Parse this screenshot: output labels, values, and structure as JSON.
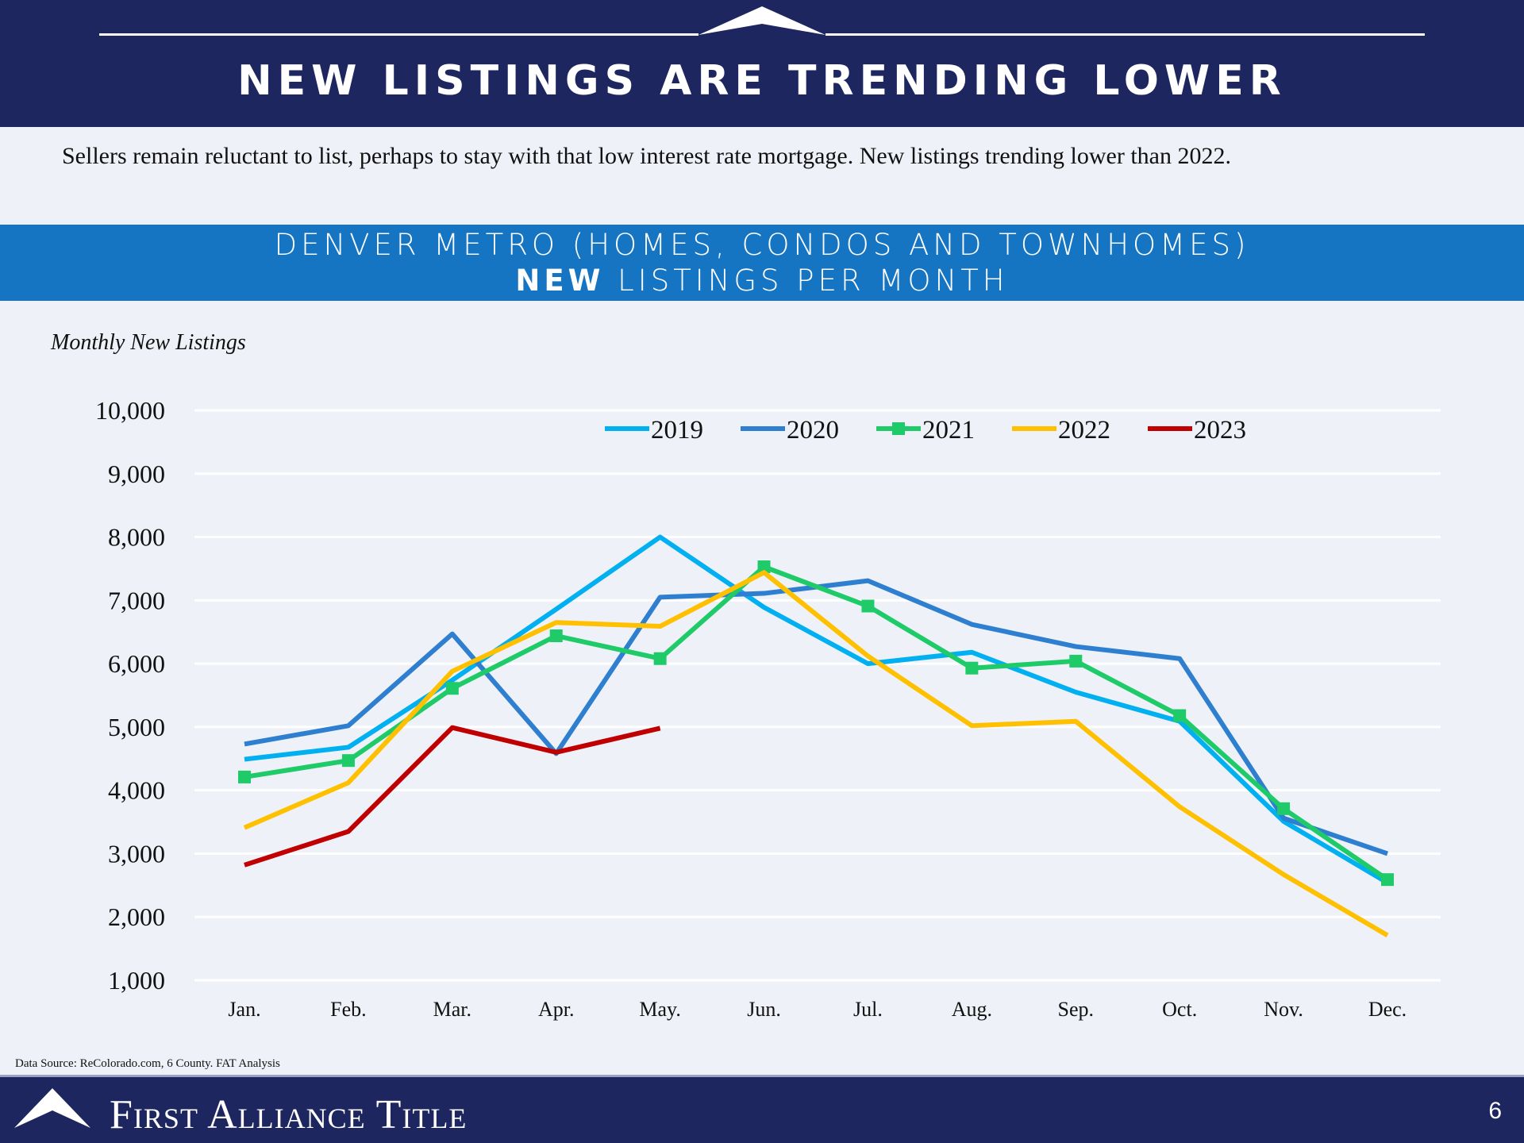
{
  "header": {
    "title": "NEW LISTINGS ARE TRENDING LOWER"
  },
  "subtitle": "Sellers remain reluctant to list, perhaps to stay with that low interest rate mortgage.  New listings trending lower than 2022.",
  "band": {
    "line1": "DENVER METRO (HOMES, CONDOS AND TOWNHOMES)",
    "line2_bold": "NEW",
    "line2_rest": " LISTINGS PER MONTH"
  },
  "footer": {
    "source": "Data Source: ReColorado.com, 6 County.  FAT Analysis",
    "company": "First Alliance Title",
    "page": "6"
  },
  "chart_data": {
    "type": "line",
    "title": "DENVER METRO (HOMES, CONDOS AND TOWNHOMES) NEW LISTINGS PER MONTH",
    "ylabel": "Monthly New Listings",
    "xlabel": "",
    "ylim": [
      1000,
      10000
    ],
    "yticks": [
      "1,000",
      "2,000",
      "3,000",
      "4,000",
      "5,000",
      "6,000",
      "7,000",
      "8,000",
      "9,000",
      "10,000"
    ],
    "grid": true,
    "legend": "top-center",
    "categories": [
      "Jan.",
      "Feb.",
      "Mar.",
      "Apr.",
      "May.",
      "Jun.",
      "Jul.",
      "Aug.",
      "Sep.",
      "Oct.",
      "Nov.",
      "Dec."
    ],
    "series": [
      {
        "name": "2019",
        "color": "#00b0f0",
        "marker": false,
        "values": [
          4490,
          4680,
          5740,
          6860,
          8000,
          6890,
          6000,
          6180,
          5550,
          5090,
          3510,
          2540
        ]
      },
      {
        "name": "2020",
        "color": "#2e7fd0",
        "marker": false,
        "values": [
          4730,
          5020,
          6470,
          4580,
          7050,
          7110,
          7310,
          6620,
          6270,
          6080,
          3560,
          3000
        ]
      },
      {
        "name": "2021",
        "color": "#1ecb68",
        "marker": true,
        "values": [
          4210,
          4470,
          5610,
          6440,
          6080,
          7530,
          6910,
          5930,
          6040,
          5180,
          3710,
          2590
        ]
      },
      {
        "name": "2022",
        "color": "#ffc000",
        "marker": false,
        "values": [
          3410,
          4120,
          5880,
          6650,
          6590,
          7440,
          6120,
          5020,
          5090,
          3740,
          2670,
          1710
        ]
      },
      {
        "name": "2023",
        "color": "#c00000",
        "marker": false,
        "values": [
          2820,
          3350,
          4990,
          4600,
          4980
        ]
      }
    ]
  }
}
